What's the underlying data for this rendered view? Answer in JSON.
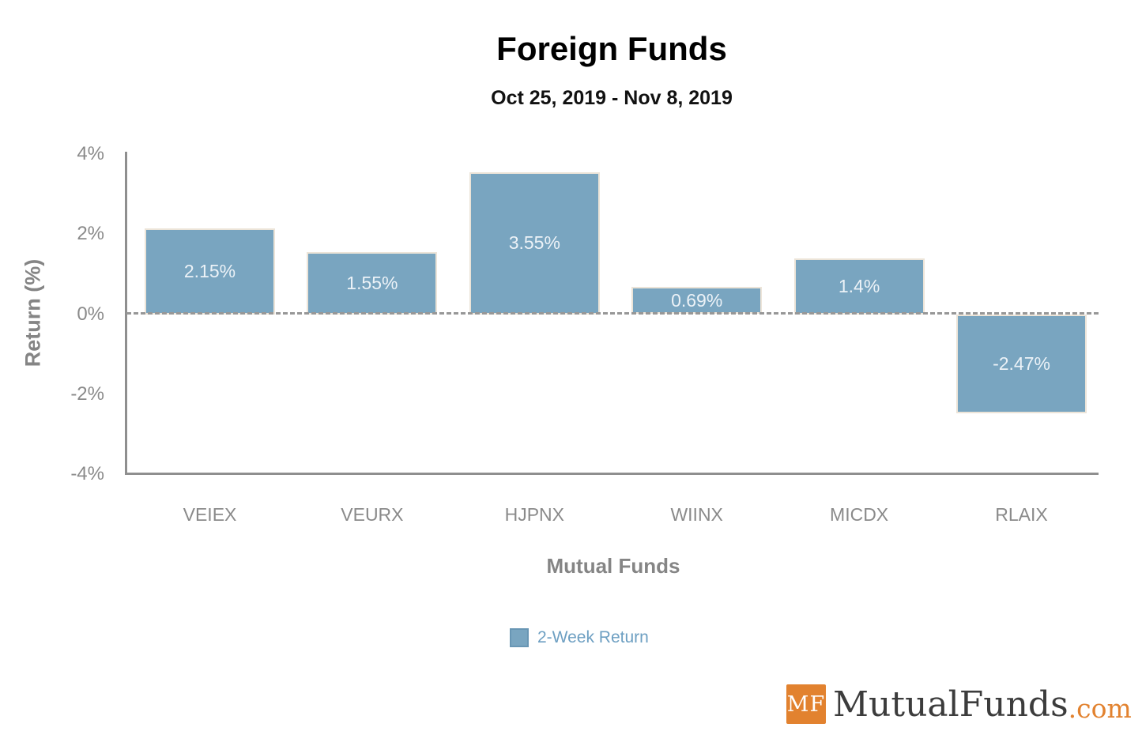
{
  "chart_data": {
    "type": "bar",
    "title": "Foreign Funds",
    "subtitle": "Oct 25, 2019 - Nov 8, 2019",
    "xlabel": "Mutual Funds",
    "ylabel": "Return (%)",
    "categories": [
      "VEIEX",
      "VEURX",
      "HJPNX",
      "WIINX",
      "MICDX",
      "RLAIX"
    ],
    "series": [
      {
        "name": "2-Week Return",
        "values": [
          2.15,
          1.55,
          3.55,
          0.69,
          1.4,
          -2.47
        ],
        "labels": [
          "2.15%",
          "1.55%",
          "3.55%",
          "0.69%",
          "1.4%",
          "-2.47%"
        ],
        "color": "#79a5c0"
      }
    ],
    "ylim": [
      -4,
      4
    ],
    "yticks": [
      {
        "value": 4,
        "label": "4%"
      },
      {
        "value": 2,
        "label": "2%"
      },
      {
        "value": 0,
        "label": "0%"
      },
      {
        "value": -2,
        "label": "-2%"
      },
      {
        "value": -4,
        "label": "-4%"
      }
    ],
    "grid": false,
    "zero_line_style": "dashed",
    "legend_position": "bottom-center"
  },
  "legend": {
    "items": [
      {
        "label": "2-Week Return",
        "swatch_color": "#79a5c0"
      }
    ]
  },
  "logo": {
    "badge": "MF",
    "name": "MutualFunds",
    "tld": ".com"
  },
  "colors": {
    "bar_fill": "#79a5c0",
    "bar_border": "#ece4d8",
    "bar_label_text": "#ecf2f7",
    "axis_line": "#8f8f8f",
    "axis_text": "#8a8a8a",
    "zero_line": "#979797",
    "title_text": "#000000",
    "legend_text": "#6d9fc2",
    "logo_orange": "#e2822f",
    "logo_text": "#3c3c3c"
  }
}
